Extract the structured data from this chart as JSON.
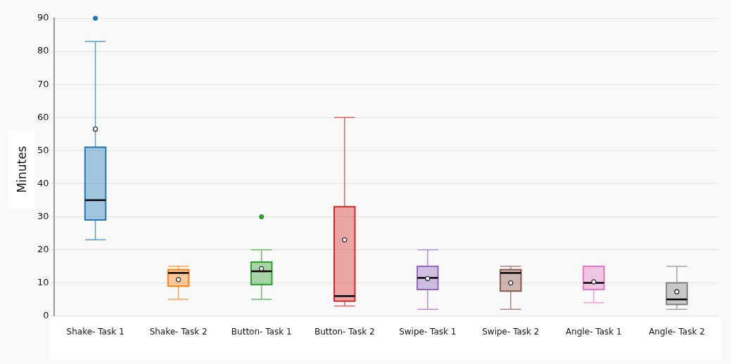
{
  "chart_data": {
    "type": "box",
    "ylabel": "Minutes",
    "categories": [
      "Shake- Task 1",
      "Shake- Task 2",
      "Button- Task 1",
      "Button- Task 2",
      "Swipe- Task 1",
      "Swipe- Task 2",
      "Angle- Task 1",
      "Angle- Task 2"
    ],
    "colors": [
      "#1f77b4",
      "#ff7f0e",
      "#2ca02c",
      "#d62728",
      "#9467bd",
      "#8c564b",
      "#e377c2",
      "#7f7f7f"
    ],
    "boxes": [
      {
        "low": 23,
        "q1": 29,
        "median": 35,
        "q3": 51,
        "high": 83,
        "mean": 56.5,
        "outliers": [
          90
        ]
      },
      {
        "low": 5,
        "q1": 9,
        "median": 13,
        "q3": 14,
        "high": 15,
        "mean": 11
      },
      {
        "low": 5,
        "q1": 9.5,
        "median": 13.5,
        "q3": 16.3,
        "high": 20,
        "mean": 14.3,
        "outliers": [
          30
        ]
      },
      {
        "low": 3,
        "q1": 4.5,
        "median": 6,
        "q3": 33,
        "high": 60,
        "mean": 23
      },
      {
        "low": 2,
        "q1": 8,
        "median": 11.5,
        "q3": 15,
        "high": 20,
        "mean": 11.3
      },
      {
        "low": 2,
        "q1": 7.5,
        "median": 13,
        "q3": 14,
        "high": 15,
        "mean": 10
      },
      {
        "low": 4,
        "q1": 8,
        "median": 10,
        "q3": 15,
        "high": 15,
        "mean": 10.3
      },
      {
        "low": 2,
        "q1": 3.5,
        "median": 5,
        "q3": 10,
        "high": 15,
        "mean": 7.3
      }
    ],
    "ylim": [
      0,
      90
    ],
    "yticks": [
      0,
      10,
      20,
      30,
      40,
      50,
      60,
      70,
      80,
      90
    ],
    "grid": "y",
    "legend": false
  }
}
